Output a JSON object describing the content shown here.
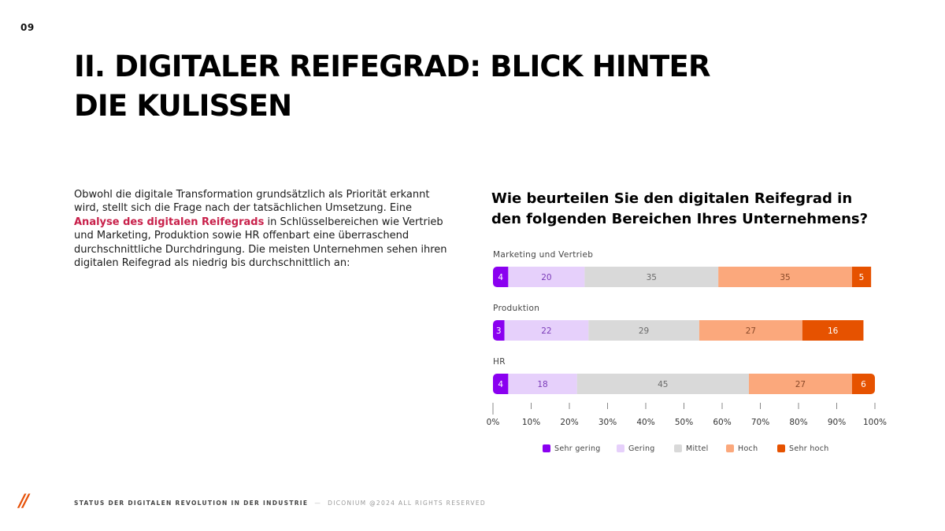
{
  "page": {
    "number": "09",
    "title": "II. DIGITALER REIFEGRAD: BLICK HINTER DIE KULISSEN"
  },
  "intro": {
    "text_before": "Obwohl die digitale Transformation grundsätzlich als Priorität erkannt wird, stellt sich die Frage nach der tatsächlichen Umsetzung. Eine ",
    "highlight": "Analyse des digitalen Reifegrads",
    "text_after": " in Schlüsselbereichen wie Vertrieb und Marketing, Produktion sowie HR offenbart eine überraschend durchschnittliche Durchdringung. Die meisten Unternehmen sehen ihren digitalen Reifegrad als niedrig bis durchschnittlich an:"
  },
  "chart_question": "Wie beurteilen Sie den digitalen Reifegrad in den folgenden Bereichen Ihres Unternehmens?",
  "chart_data": {
    "type": "bar",
    "orientation": "horizontal",
    "stacked": true,
    "title": "Wie beurteilen Sie den digitalen Reifegrad in den folgenden Bereichen Ihres Unternehmens?",
    "categories": [
      "Marketing und Vertrieb",
      "Produktion",
      "HR"
    ],
    "series": [
      {
        "name": "Sehr gering",
        "color": "#8a00f0",
        "label_color": "#ffffff",
        "values": [
          4,
          3,
          4
        ]
      },
      {
        "name": "Gering",
        "color": "#e6d0fb",
        "label_color": "#7a3bb8",
        "values": [
          20,
          22,
          18
        ]
      },
      {
        "name": "Mittel",
        "color": "#d9d9d9",
        "label_color": "#6b6b6b",
        "values": [
          35,
          29,
          45
        ]
      },
      {
        "name": "Hoch",
        "color": "#fba87c",
        "label_color": "#8a4a2a",
        "values": [
          35,
          27,
          27
        ]
      },
      {
        "name": "Sehr hoch",
        "color": "#e65200",
        "label_color": "#ffffff",
        "values": [
          5,
          16,
          6
        ]
      }
    ],
    "xlim": [
      0,
      100
    ],
    "x_ticks": [
      "0%",
      "10%",
      "20%",
      "30%",
      "40%",
      "50%",
      "60%",
      "70%",
      "80%",
      "90%",
      "100%"
    ],
    "legend_position": "bottom",
    "grid": false
  },
  "footer": {
    "logo": "//",
    "report_title": "STATUS DER DIGITALEN REVOLUTION IN DER INDUSTRIE",
    "separator": "—",
    "copyright": "DICONIUM @2024 ALL RIGHTS RESERVED"
  }
}
